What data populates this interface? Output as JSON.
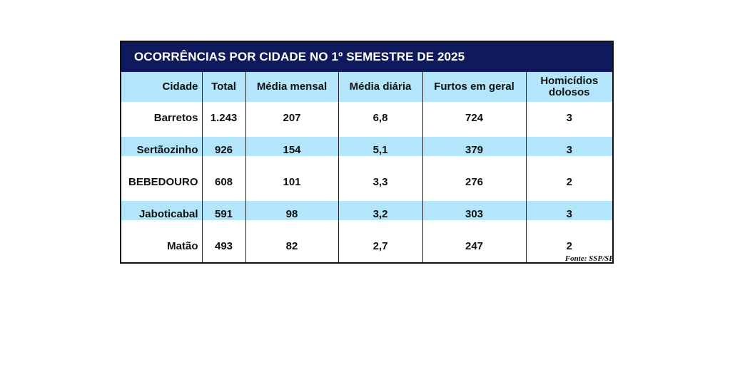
{
  "chart_data": {
    "type": "table",
    "title": "OCORRÊNCIAS POR CIDADE NO 1º SEMESTRE DE 2025",
    "columns": [
      "Cidade",
      "Total",
      "Média mensal",
      "Média diária",
      "Furtos em geral",
      "Homicídios dolosos"
    ],
    "rows": [
      [
        "Barretos",
        "1.243",
        "207",
        "6,8",
        "724",
        "3"
      ],
      [
        "Sertãozinho",
        "926",
        "154",
        "5,1",
        "379",
        "3"
      ],
      [
        "BEBEDOURO",
        "608",
        "101",
        "3,3",
        "276",
        "2"
      ],
      [
        "Jaboticabal",
        "591",
        "98",
        "3,2",
        "303",
        "3"
      ],
      [
        "Matão",
        "493",
        "82",
        "2,7",
        "247",
        "2"
      ]
    ],
    "source": "Fonte: SSP/SP"
  },
  "colors": {
    "title_bg": "#0f1a5c",
    "stripe": "#b3e6fa"
  }
}
